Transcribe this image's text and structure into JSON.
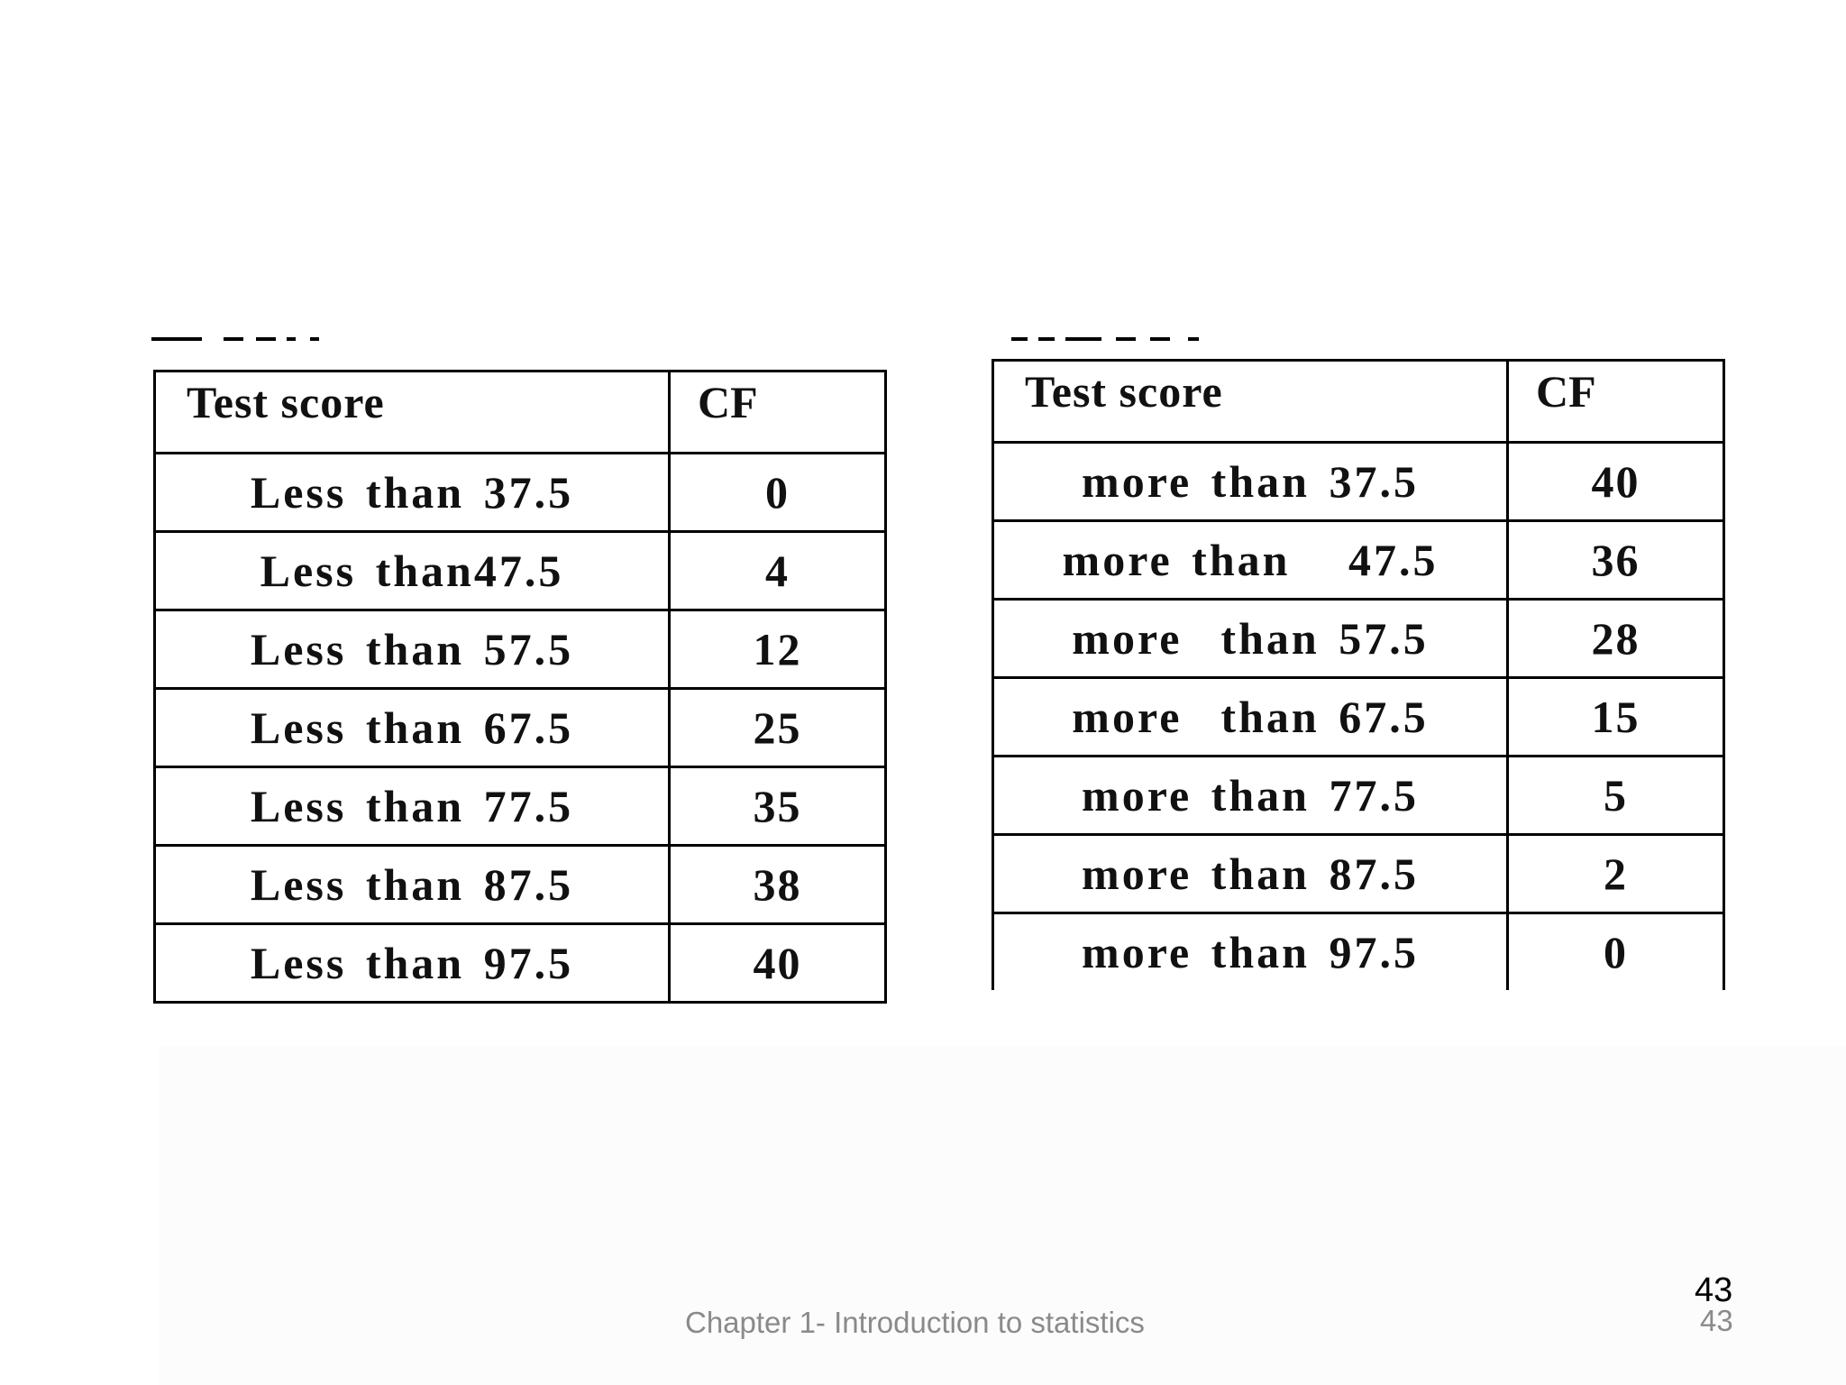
{
  "tables": [
    {
      "header": [
        "Test score",
        "CF"
      ],
      "rows": [
        [
          "Less than 37.5",
          "0"
        ],
        [
          "Less than47.5",
          "4"
        ],
        [
          "Less than 57.5",
          "12"
        ],
        [
          "Less than 67.5",
          "25"
        ],
        [
          "Less than 77.5",
          "35"
        ],
        [
          "Less than 87.5",
          "38"
        ],
        [
          "Less than 97.5",
          "40"
        ]
      ]
    },
    {
      "header": [
        "Test score",
        "CF"
      ],
      "rows": [
        [
          "more than 37.5",
          "40"
        ],
        [
          "more than   47.5",
          "36"
        ],
        [
          "more  than 57.5",
          "28"
        ],
        [
          "more  than 67.5",
          "15"
        ],
        [
          "more than 77.5",
          "5"
        ],
        [
          "more than 87.5",
          "2"
        ],
        [
          "more than 97.5",
          "0"
        ]
      ]
    }
  ],
  "footer": {
    "chapter": "Chapter 1- Introduction to statistics",
    "page_number": "43",
    "page_number_secondary": "43"
  }
}
